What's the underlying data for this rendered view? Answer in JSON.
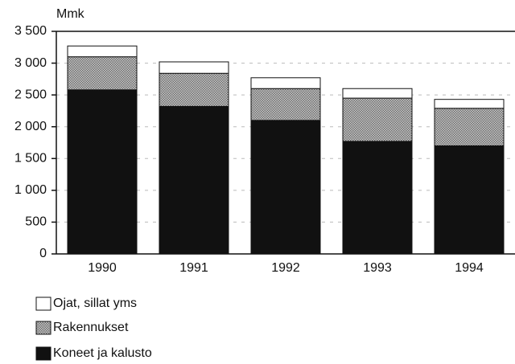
{
  "chart_data": {
    "type": "stacked_bar",
    "y_axis_label": "Mmk",
    "categories": [
      "1990",
      "1991",
      "1992",
      "1993",
      "1994"
    ],
    "series": [
      {
        "name": "Koneet ja kalusto",
        "color": "#111111",
        "values": [
          2580,
          2320,
          2100,
          1770,
          1700
        ]
      },
      {
        "name": "Rakennukset",
        "color": "#a3a3a3",
        "values": [
          520,
          520,
          500,
          680,
          590
        ]
      },
      {
        "name": "Ojat, sillat yms",
        "color": "#ffffff",
        "values": [
          170,
          180,
          170,
          150,
          140
        ]
      }
    ],
    "ylim": [
      0,
      3500
    ],
    "yticks": [
      0,
      500,
      {
        "value": 1000,
        "label": "1 000"
      },
      {
        "value": 1500,
        "label": "1 500"
      },
      {
        "value": 2000,
        "label": "2 000"
      },
      {
        "value": 2500,
        "label": "2 500"
      },
      {
        "value": 3000,
        "label": "3 000"
      },
      {
        "value": 3500,
        "label": "3 500"
      }
    ],
    "grid": true
  }
}
